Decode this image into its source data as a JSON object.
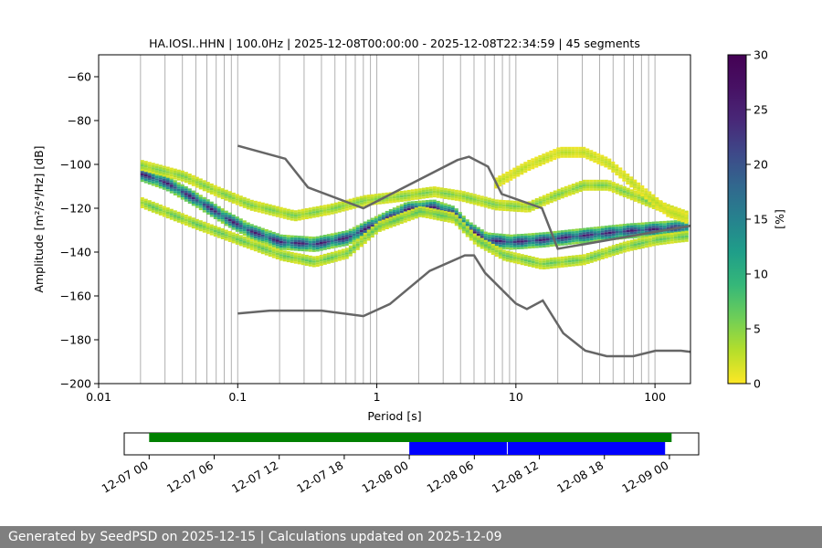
{
  "chart_data": [
    {
      "type": "heatmap",
      "title": "HA.IOSI..HHN | 100.0Hz | 2025-12-08T00:00:00 - 2025-12-08T22:34:59 | 45 segments",
      "xlabel": "Period [s]",
      "ylabel": "Amplitude [m²/s⁴/Hz] [dB]",
      "xscale": "log",
      "xlim": [
        0.01,
        180
      ],
      "ylim": [
        -200,
        -50
      ],
      "xticks": [
        0.01,
        0.1,
        1,
        10,
        100
      ],
      "xtick_labels": [
        "0.01",
        "0.1",
        "1",
        "10",
        "100"
      ],
      "yticks": [
        -200,
        -180,
        -160,
        -140,
        -120,
        -100,
        -80,
        -60
      ],
      "ytick_labels": [
        "−200",
        "−180",
        "−160",
        "−140",
        "−120",
        "−100",
        "−80",
        "−60"
      ],
      "grid": "vertical at log-minor periods",
      "colormap": "viridis_r",
      "colorbar": {
        "label": "[%]",
        "range": [
          0,
          30
        ],
        "ticks": [
          0,
          5,
          10,
          15,
          20,
          25,
          30
        ],
        "tick_labels": [
          "0",
          "5",
          "10",
          "15",
          "20",
          "25",
          "30"
        ]
      },
      "noise_models": [
        {
          "period": [
            0.1,
            0.22,
            0.32,
            0.8,
            3.8,
            4.6,
            6.3,
            7.9,
            15.4,
            20,
            180
          ],
          "amplitude": [
            -91.5,
            -97.4,
            -110.5,
            -120,
            -98,
            -96.5,
            -101,
            -113.5,
            -120,
            -138.5,
            -128
          ]
        },
        {
          "period": [
            0.1,
            0.17,
            0.4,
            0.8,
            1.24,
            2.4,
            4.3,
            5,
            6,
            10,
            12,
            15.6,
            21.9,
            31.6,
            45,
            70,
            101,
            154,
            180
          ],
          "amplitude": [
            -168,
            -166.7,
            -166.7,
            -169.2,
            -163.7,
            -148.6,
            -141.5,
            -141.5,
            -149.5,
            -163.5,
            -166,
            -162.1,
            -177,
            -185,
            -187.5,
            -187.5,
            -185,
            -185,
            -185.5
          ]
        }
      ],
      "psd_bands": [
        {
          "name": "mode",
          "period": [
            0.02,
            0.03,
            0.05,
            0.08,
            0.12,
            0.2,
            0.35,
            0.6,
            1.0,
            1.6,
            2.5,
            3.5,
            4.5,
            6,
            9,
            15,
            30,
            60,
            100,
            180
          ],
          "amplitude": [
            -104,
            -108,
            -116,
            -124,
            -130,
            -135,
            -136,
            -133,
            -126,
            -120,
            -119,
            -122,
            -129,
            -134,
            -135,
            -134,
            -132,
            -130,
            -129,
            -128
          ],
          "max_percent": 26
        },
        {
          "name": "upper",
          "period": [
            0.02,
            0.04,
            0.07,
            0.12,
            0.25,
            0.45,
            0.8,
            1.5,
            2.5,
            4,
            7,
            12,
            20,
            30,
            45,
            70,
            120,
            180
          ],
          "amplitude": [
            -100,
            -105,
            -112,
            -118,
            -123,
            -120,
            -116,
            -114,
            -112,
            -114,
            -118,
            -119,
            -113,
            -109,
            -109,
            -114,
            -120,
            -124
          ],
          "max_percent": 6
        },
        {
          "name": "lower",
          "period": [
            0.02,
            0.05,
            0.1,
            0.2,
            0.35,
            0.6,
            1,
            2,
            3.5,
            5,
            8,
            15,
            30,
            60,
            100,
            180
          ],
          "amplitude": [
            -117,
            -127,
            -134,
            -141,
            -144,
            -140,
            -128,
            -121,
            -124,
            -134,
            -141,
            -145,
            -143,
            -137,
            -134,
            -132
          ],
          "max_percent": 7
        },
        {
          "name": "long-period upper",
          "period": [
            7,
            12,
            20,
            30,
            45,
            70,
            120,
            180
          ],
          "amplitude": [
            -108,
            -100,
            -94,
            -94,
            -99,
            -109,
            -121,
            -125
          ],
          "max_percent": 3
        }
      ]
    },
    {
      "type": "timeline",
      "xlim": [
        "12-07 00",
        "12-09 03"
      ],
      "xtick_labels": [
        "12-07 00",
        "12-07 06",
        "12-07 12",
        "12-07 18",
        "12-08 00",
        "12-08 06",
        "12-08 12",
        "12-08 18",
        "12-09 00"
      ],
      "tick_hours": [
        0,
        6,
        12,
        18,
        24,
        30,
        36,
        42,
        48
      ],
      "availability": {
        "start_hour": 0,
        "end_hour": 48.2,
        "color": "#008000"
      },
      "used_segments": [
        {
          "start_hour": 24,
          "end_hour": 33,
          "color": "#0000ff"
        },
        {
          "start_hour": 33.08,
          "end_hour": 47.6,
          "color": "#0000ff"
        }
      ]
    }
  ],
  "footer": {
    "text": "Generated by SeedPSD on 2025-12-15 | Calculations updated on 2025-12-09"
  }
}
